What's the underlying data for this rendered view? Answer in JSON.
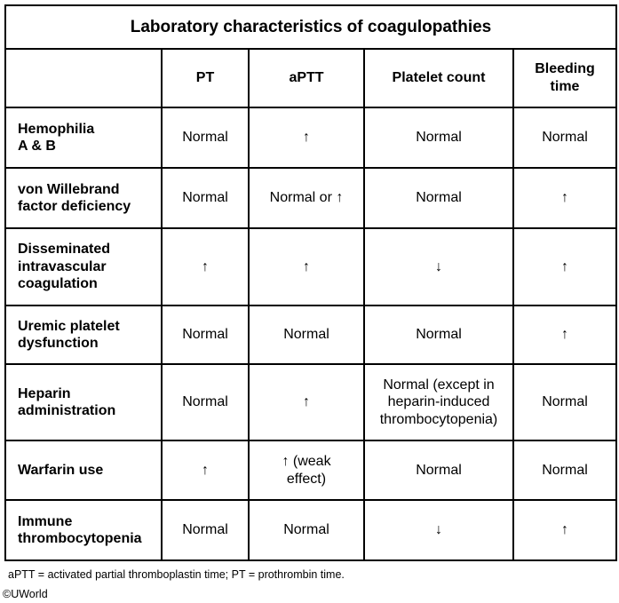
{
  "title": "Laboratory characteristics of coagulopathies",
  "columns": [
    "",
    "PT",
    "aPTT",
    "Platelet count",
    "Bleeding time"
  ],
  "symbols": {
    "up": "↑",
    "down": "↓"
  },
  "rows": [
    {
      "label": "Hemophilia A & B",
      "pt": "Normal",
      "aptt": "↑",
      "platelet": "Normal",
      "bleeding": "Normal"
    },
    {
      "label": "von Willebrand factor deficiency",
      "pt": "Normal",
      "aptt": "Normal or ↑",
      "platelet": "Normal",
      "bleeding": "↑"
    },
    {
      "label": "Disseminated intravascular coagulation",
      "pt": "↑",
      "aptt": "↑",
      "platelet": "↓",
      "bleeding": "↑"
    },
    {
      "label": "Uremic platelet dysfunction",
      "pt": "Normal",
      "aptt": "Normal",
      "platelet": "Normal",
      "bleeding": "↑"
    },
    {
      "label": "Heparin administration",
      "pt": "Normal",
      "aptt": "↑",
      "platelet": "Normal (except in heparin-induced thrombocytopenia)",
      "bleeding": "Normal"
    },
    {
      "label": "Warfarin use",
      "pt": "↑",
      "aptt": "↑ (weak effect)",
      "platelet": "Normal",
      "bleeding": "Normal"
    },
    {
      "label": "Immune thrombocytopenia",
      "pt": "Normal",
      "aptt": "Normal",
      "platelet": "↓",
      "bleeding": "↑"
    }
  ],
  "footnote": "aPTT = activated partial thromboplastin time; PT = prothrombin time.",
  "copyright": "©UWorld"
}
